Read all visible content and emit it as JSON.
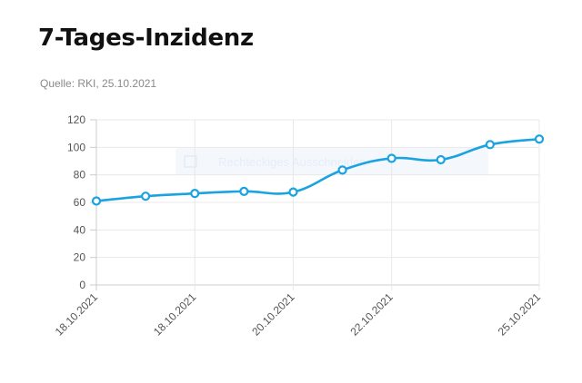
{
  "header": {
    "title": "7-Tages-Inzidenz",
    "source": "Quelle: RKI, 25.10.2021"
  },
  "overlay": {
    "label": "Rechteckiges Ausschneiden"
  },
  "colors": {
    "line": "#1aa3e0",
    "grid": "#e8e8e8",
    "axis": "#cccccc"
  },
  "chart_data": {
    "type": "line",
    "title": "7-Tages-Inzidenz",
    "xlabel": "",
    "ylabel": "",
    "x": [
      "18.10.2021",
      "",
      "18.10.2021",
      "",
      "20.10.2021",
      "",
      "22.10.2021",
      "",
      "",
      "25.10.2021"
    ],
    "series": [
      {
        "values": [
          61,
          64.5,
          66.5,
          68,
          67.5,
          83.5,
          92,
          91,
          102,
          106
        ]
      }
    ],
    "ylim": [
      0,
      120
    ],
    "yticks": [
      0,
      20,
      40,
      60,
      80,
      100,
      120
    ],
    "grid": true,
    "legend": "none"
  }
}
